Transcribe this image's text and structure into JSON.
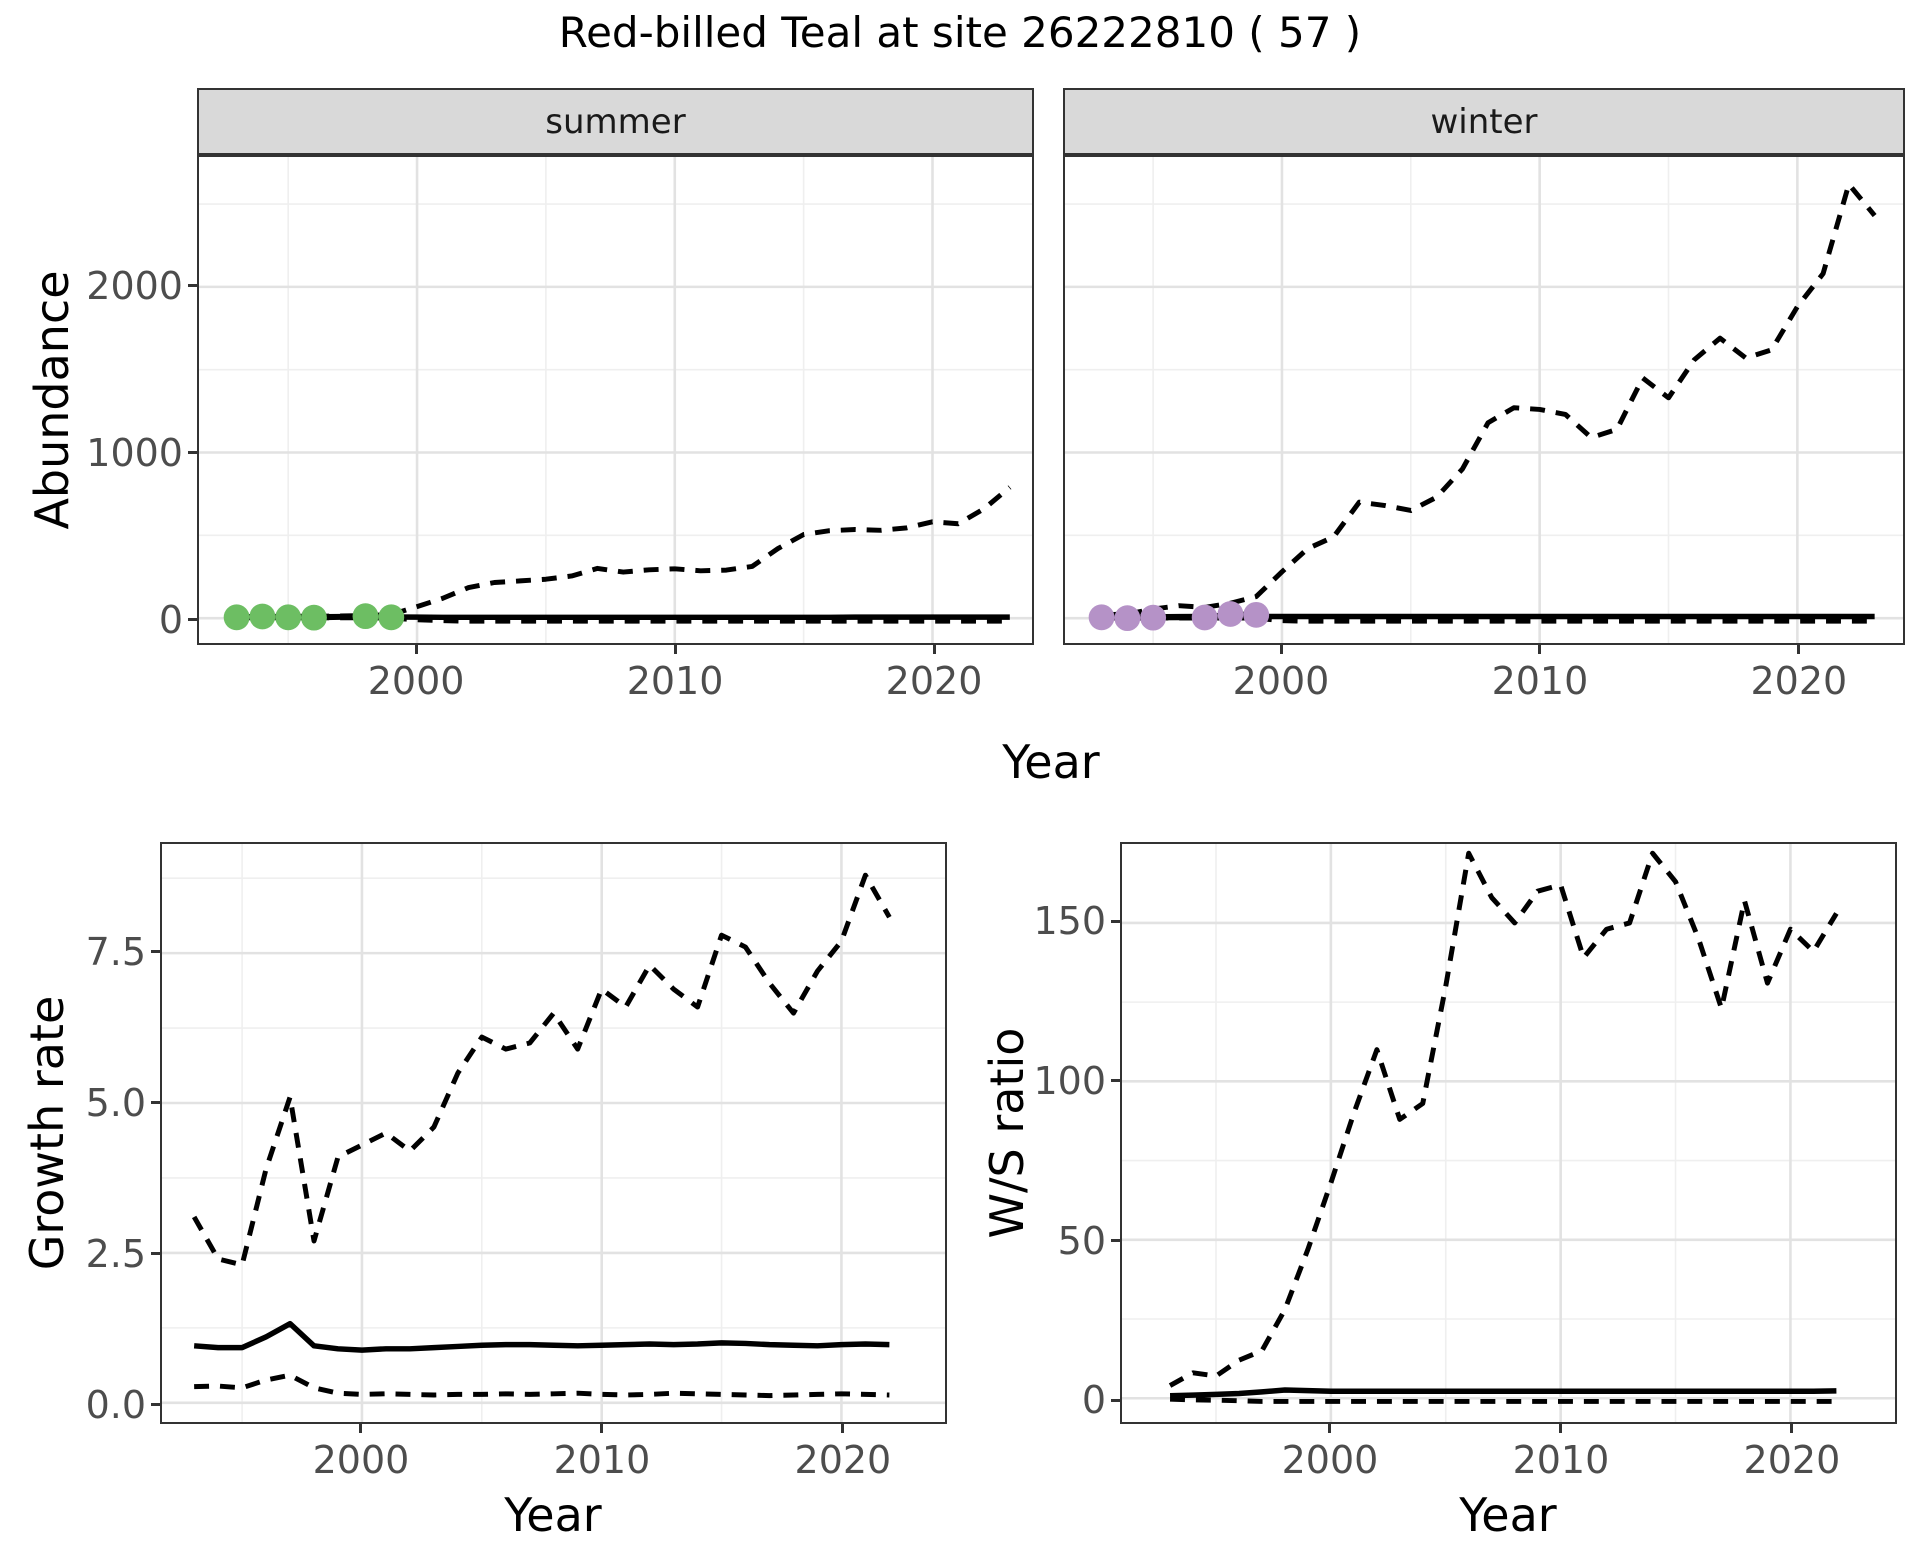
{
  "title": "Red-billed Teal at site 26222810 ( 57 )",
  "axis_titles": {
    "abundance": "Abundance",
    "year_top": "Year",
    "growth_rate": "Growth rate",
    "year_growth": "Year",
    "ws_ratio": "W/S ratio",
    "year_ws": "Year"
  },
  "colors": {
    "summer_points": "#6dbe63",
    "winter_points": "#b592c7",
    "line": "#000000",
    "strip_background": "#d9d9d9",
    "grid_major": "#e2e2e2",
    "grid_minor": "#efefef",
    "tick_text": "#4d4d4d",
    "panel_border": "#333333"
  },
  "chart_data": [
    {
      "type": "line",
      "facet": "summer",
      "ylabel": "Abundance",
      "xlabel": "Year",
      "xlim": [
        1991.54,
        2023.86
      ],
      "ylim": [
        -150,
        2784
      ],
      "xticks": [
        2000,
        2010,
        2020
      ],
      "xticks_minor": [
        1995,
        2005,
        2015
      ],
      "yticks": [
        0,
        1000,
        2000
      ],
      "ytick_labels": [
        "0",
        "1000",
        "2000"
      ],
      "yticks_minor": [
        500,
        1500,
        2500
      ],
      "x": [
        1993,
        1994,
        1995,
        1996,
        1997,
        1998,
        1999,
        2000,
        2001,
        2002,
        2003,
        2004,
        2005,
        2006,
        2007,
        2008,
        2009,
        2010,
        2011,
        2012,
        2013,
        2014,
        2015,
        2016,
        2017,
        2018,
        2019,
        2020,
        2021,
        2022,
        2023
      ],
      "series": [
        {
          "name": "upper-credible-bound",
          "style": "dashed",
          "values": [
            8,
            10,
            11,
            12,
            13,
            16,
            22,
            70,
            120,
            185,
            215,
            225,
            235,
            255,
            300,
            278,
            292,
            298,
            286,
            290,
            312,
            420,
            505,
            528,
            535,
            530,
            545,
            582,
            570,
            660,
            790
          ]
        },
        {
          "name": "lower-credible-bound",
          "style": "dashed",
          "values": [
            2,
            2,
            2,
            2,
            2,
            2,
            0,
            -10,
            -15,
            -18,
            -18,
            -18,
            -18,
            -18,
            -18,
            -18,
            -18,
            -18,
            -18,
            -18,
            -18,
            -18,
            -18,
            -18,
            -18,
            -18,
            -18,
            -18,
            -18,
            -18,
            -18
          ]
        },
        {
          "name": "fitted-abundance",
          "style": "solid",
          "values": [
            6,
            6,
            7,
            8,
            9,
            8,
            7,
            6,
            5,
            5,
            5,
            5,
            5,
            5,
            5,
            5,
            5,
            5,
            5,
            5,
            5,
            5,
            5,
            5,
            6,
            6,
            6,
            6,
            6,
            6,
            6
          ]
        },
        {
          "name": "observed-counts-line",
          "style": "solid",
          "x": [
            1993,
            1994,
            1995,
            1996,
            1997,
            1998,
            1999
          ],
          "values": [
            5,
            10,
            5,
            3,
            6,
            12,
            5
          ]
        }
      ],
      "points": {
        "name": "summer-observations",
        "color": "#6dbe63",
        "x": [
          1993,
          1994,
          1995,
          1996,
          1998,
          1999
        ],
        "y": [
          5,
          10,
          5,
          3,
          12,
          5
        ]
      }
    },
    {
      "type": "line",
      "facet": "winter",
      "ylabel": "Abundance",
      "xlabel": "Year",
      "xlim": [
        1991.58,
        2024.1
      ],
      "ylim": [
        -150,
        2784
      ],
      "xticks": [
        2000,
        2010,
        2020
      ],
      "xticks_minor": [
        1995,
        2005,
        2015
      ],
      "yticks": [
        0,
        1000,
        2000
      ],
      "ytick_labels": [
        "0",
        "1000",
        "2000"
      ],
      "yticks_minor": [
        500,
        1500,
        2500
      ],
      "x": [
        1993,
        1994,
        1995,
        1996,
        1997,
        1998,
        1999,
        2000,
        2001,
        2002,
        2003,
        2004,
        2005,
        2006,
        2007,
        2008,
        2009,
        2010,
        2011,
        2012,
        2013,
        2014,
        2015,
        2016,
        2017,
        2018,
        2019,
        2020,
        2021,
        2022,
        2023
      ],
      "series": [
        {
          "name": "upper-credible-bound",
          "style": "dashed",
          "values": [
            20,
            25,
            55,
            75,
            65,
            90,
            130,
            280,
            420,
            490,
            700,
            680,
            650,
            730,
            900,
            1180,
            1270,
            1260,
            1230,
            1090,
            1140,
            1450,
            1330,
            1560,
            1690,
            1570,
            1620,
            1880,
            2080,
            2620,
            2430
          ]
        },
        {
          "name": "lower-credible-bound",
          "style": "dashed",
          "values": [
            1,
            1,
            1,
            1,
            1,
            1,
            0,
            -15,
            -18,
            -18,
            -18,
            -18,
            -18,
            -18,
            -18,
            -18,
            -18,
            -18,
            -18,
            -18,
            -18,
            -18,
            -18,
            -18,
            -18,
            -18,
            -18,
            -18,
            -18,
            -18,
            -18
          ]
        },
        {
          "name": "fitted-abundance",
          "style": "solid",
          "values": [
            8,
            8,
            8,
            9,
            10,
            10,
            10,
            10,
            10,
            10,
            10,
            10,
            10,
            10,
            10,
            10,
            10,
            10,
            10,
            10,
            10,
            10,
            10,
            10,
            10,
            10,
            10,
            10,
            10,
            10,
            10
          ]
        },
        {
          "name": "observed-counts-line",
          "style": "solid",
          "x": [
            1993,
            1994,
            1995,
            1996,
            1997,
            1998,
            1999
          ],
          "values": [
            5,
            0,
            3,
            4,
            4,
            25,
            20
          ]
        }
      ],
      "points": {
        "name": "winter-observations",
        "color": "#b592c7",
        "x": [
          1993,
          1994,
          1995,
          1997,
          1998,
          1999
        ],
        "y": [
          5,
          0,
          3,
          4,
          25,
          20
        ]
      }
    },
    {
      "type": "line",
      "facet": null,
      "ylabel": "Growth rate",
      "xlabel": "Year",
      "xlim": [
        1991.66,
        2024.32
      ],
      "ylim": [
        -0.32,
        9.32
      ],
      "xticks": [
        2000,
        2010,
        2020
      ],
      "xticks_minor": [
        1995,
        2005,
        2015
      ],
      "yticks": [
        0.0,
        2.5,
        5.0,
        7.5
      ],
      "ytick_labels": [
        "0.0",
        "2.5",
        "5.0",
        "7.5"
      ],
      "yticks_minor": [
        1.25,
        3.75,
        6.25,
        8.75
      ],
      "x": [
        1993,
        1994,
        1995,
        1996,
        1997,
        1998,
        1999,
        2000,
        2001,
        2002,
        2003,
        2004,
        2005,
        2006,
        2007,
        2008,
        2009,
        2010,
        2011,
        2012,
        2013,
        2014,
        2015,
        2016,
        2017,
        2018,
        2019,
        2020,
        2021,
        2022
      ],
      "series": [
        {
          "name": "upper-credible-bound",
          "style": "dashed",
          "values": [
            3.1,
            2.4,
            2.3,
            3.9,
            5.1,
            2.7,
            4.1,
            4.3,
            4.5,
            4.2,
            4.6,
            5.5,
            6.1,
            5.9,
            6.0,
            6.5,
            5.9,
            6.9,
            6.6,
            7.3,
            6.9,
            6.6,
            7.8,
            7.6,
            7.0,
            6.5,
            7.2,
            7.7,
            8.8,
            8.1
          ]
        },
        {
          "name": "median-growth-rate",
          "style": "solid",
          "values": [
            0.95,
            0.92,
            0.92,
            1.1,
            1.32,
            0.95,
            0.9,
            0.88,
            0.9,
            0.9,
            0.92,
            0.94,
            0.96,
            0.97,
            0.97,
            0.96,
            0.95,
            0.96,
            0.97,
            0.98,
            0.97,
            0.98,
            1.0,
            0.99,
            0.97,
            0.96,
            0.95,
            0.97,
            0.98,
            0.97
          ]
        },
        {
          "name": "lower-credible-bound",
          "style": "dashed",
          "values": [
            0.27,
            0.28,
            0.25,
            0.38,
            0.46,
            0.25,
            0.16,
            0.14,
            0.15,
            0.14,
            0.13,
            0.14,
            0.14,
            0.15,
            0.14,
            0.15,
            0.16,
            0.14,
            0.13,
            0.14,
            0.16,
            0.15,
            0.14,
            0.13,
            0.12,
            0.13,
            0.14,
            0.15,
            0.14,
            0.13
          ]
        }
      ],
      "points": null
    },
    {
      "type": "line",
      "facet": null,
      "ylabel": "W/S ratio",
      "xlabel": "Year",
      "xlim": [
        1990.91,
        2024.55
      ],
      "ylim": [
        -7.5,
        174.9
      ],
      "xticks": [
        2000,
        2010,
        2020
      ],
      "xticks_minor": [
        1995,
        2005,
        2015
      ],
      "yticks": [
        0,
        50,
        100,
        150
      ],
      "ytick_labels": [
        "0",
        "50",
        "100",
        "150"
      ],
      "yticks_minor": [
        25,
        75,
        125,
        175
      ],
      "x": [
        1993,
        1994,
        1995,
        1996,
        1997,
        1998,
        1999,
        2000,
        2001,
        2002,
        2003,
        2004,
        2005,
        2006,
        2007,
        2008,
        2009,
        2010,
        2011,
        2012,
        2013,
        2014,
        2015,
        2016,
        2017,
        2018,
        2019,
        2020,
        2021,
        2022
      ],
      "series": [
        {
          "name": "upper-credible-bound",
          "style": "dashed",
          "values": [
            4,
            8,
            7,
            12,
            15,
            28,
            47,
            68,
            90,
            110,
            88,
            93,
            130,
            172,
            158,
            150,
            160,
            162,
            139,
            148,
            150,
            172,
            163,
            145,
            123,
            157,
            131,
            148,
            141,
            153
          ]
        },
        {
          "name": "median-ws-ratio",
          "style": "solid",
          "values": [
            0.8,
            1.0,
            1.2,
            1.5,
            2.0,
            2.6,
            2.4,
            2.2,
            2.2,
            2.2,
            2.2,
            2.2,
            2.2,
            2.2,
            2.2,
            2.2,
            2.2,
            2.2,
            2.2,
            2.2,
            2.2,
            2.2,
            2.2,
            2.2,
            2.2,
            2.2,
            2.2,
            2.2,
            2.2,
            2.3
          ]
        },
        {
          "name": "lower-credible-bound",
          "style": "dashed",
          "values": [
            -0.3,
            -0.5,
            -0.6,
            -0.8,
            -1,
            -1,
            -1,
            -1,
            -1,
            -1,
            -1,
            -1,
            -1,
            -1,
            -1,
            -1,
            -1,
            -1,
            -1,
            -1,
            -1,
            -1,
            -1,
            -1,
            -1,
            -1,
            -1,
            -1,
            -1,
            -1
          ]
        }
      ],
      "points": null
    }
  ]
}
